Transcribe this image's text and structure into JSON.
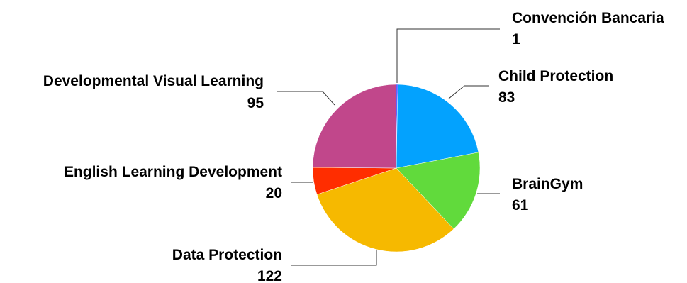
{
  "chart_data": {
    "type": "pie",
    "title": "",
    "legend": "none",
    "slices": [
      {
        "label": "Convención Bancaria",
        "value": 1,
        "display": "1",
        "color": "#0000ff"
      },
      {
        "label": "Child Protection",
        "value": 83,
        "display": "83",
        "color": "#03a2fe"
      },
      {
        "label": "BrainGym",
        "value": 61,
        "display": "61",
        "color": "#61da3c"
      },
      {
        "label": "Data Protection",
        "value": 122,
        "display": "122",
        "color": "#f6b900"
      },
      {
        "label": "English Learning Development",
        "value": 20,
        "display": "20",
        "color": "#ff2d00"
      },
      {
        "label": "Developmental Visual Learning",
        "value": 95,
        "display": "95",
        "color": "#c1478b"
      }
    ]
  }
}
